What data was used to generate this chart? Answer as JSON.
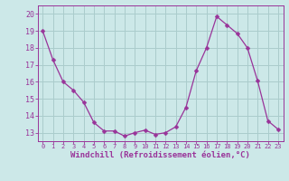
{
  "x": [
    0,
    1,
    2,
    3,
    4,
    5,
    6,
    7,
    8,
    9,
    10,
    11,
    12,
    13,
    14,
    15,
    16,
    17,
    18,
    19,
    20,
    21,
    22,
    23
  ],
  "y": [
    19,
    17.3,
    16.0,
    15.5,
    14.8,
    13.6,
    13.1,
    13.1,
    12.8,
    13.0,
    13.15,
    12.9,
    13.0,
    13.35,
    14.5,
    16.65,
    18.0,
    19.85,
    19.35,
    18.85,
    18.0,
    16.05,
    13.7,
    13.2
  ],
  "line_color": "#993399",
  "marker": "D",
  "marker_size": 2.5,
  "bg_color": "#cce8e8",
  "grid_color": "#aacccc",
  "xlabel": "Windchill (Refroidissement éolien,°C)",
  "xlabel_color": "#993399",
  "tick_color": "#993399",
  "ylim": [
    12.5,
    20.5
  ],
  "xlim": [
    -0.5,
    23.5
  ],
  "yticks": [
    13,
    14,
    15,
    16,
    17,
    18,
    19,
    20
  ],
  "xticks": [
    0,
    1,
    2,
    3,
    4,
    5,
    6,
    7,
    8,
    9,
    10,
    11,
    12,
    13,
    14,
    15,
    16,
    17,
    18,
    19,
    20,
    21,
    22,
    23
  ],
  "xtick_fontsize": 5.0,
  "ytick_fontsize": 6.0,
  "xlabel_fontsize": 6.5
}
